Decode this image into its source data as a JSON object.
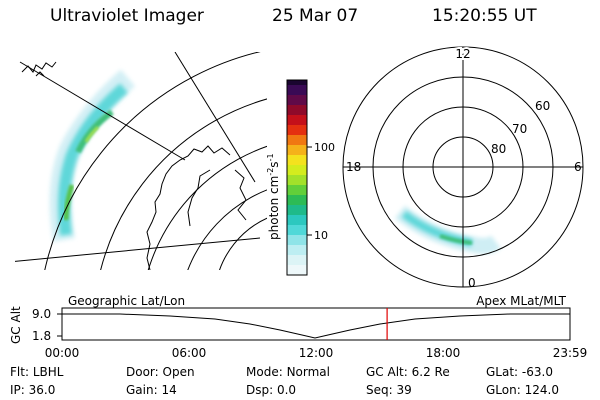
{
  "header": {
    "instrument": "Ultraviolet Imager",
    "date": "25 Mar 07",
    "time": "15:20:55 UT"
  },
  "colorbar": {
    "unit_label": "photon cm",
    "unit_exp1": "-2",
    "unit_mid": "s",
    "unit_exp2": "-1",
    "ticks": [
      {
        "label": "100",
        "value": 100
      },
      {
        "label": "10",
        "value": 10
      }
    ]
  },
  "geo_panel": {
    "label": "Geographic Lat/Lon"
  },
  "polar_panel": {
    "label": "Apex MLat/MLT",
    "mlt_labels": {
      "top": "12",
      "left": "18",
      "right": "6",
      "bottom": "0"
    },
    "mlat_labels": [
      "60",
      "70",
      "80"
    ]
  },
  "timeline": {
    "ylabel": "GC Alt",
    "y_ticks": [
      "9.0",
      "1.8"
    ],
    "x_ticks": [
      "00:00",
      "06:00",
      "12:00",
      "18:00",
      "23:59"
    ],
    "current_time_hours": 15.35
  },
  "footer": {
    "row1": [
      {
        "key": "Flt:",
        "value": "LBHL"
      },
      {
        "key": "Door:",
        "value": "Open"
      },
      {
        "key": "Mode:",
        "value": "Normal"
      },
      {
        "key": "GC Alt:",
        "value": "6.2 Re"
      },
      {
        "key": "GLat:",
        "value": "-63.0"
      }
    ],
    "row2": [
      {
        "key": "IP:",
        "value": "36.0"
      },
      {
        "key": "Gain:",
        "value": "14"
      },
      {
        "key": "Dsp:",
        "value": "0.0"
      },
      {
        "key": "Seq:",
        "value": "39"
      },
      {
        "key": "GLon:",
        "value": "124.0"
      }
    ]
  }
}
